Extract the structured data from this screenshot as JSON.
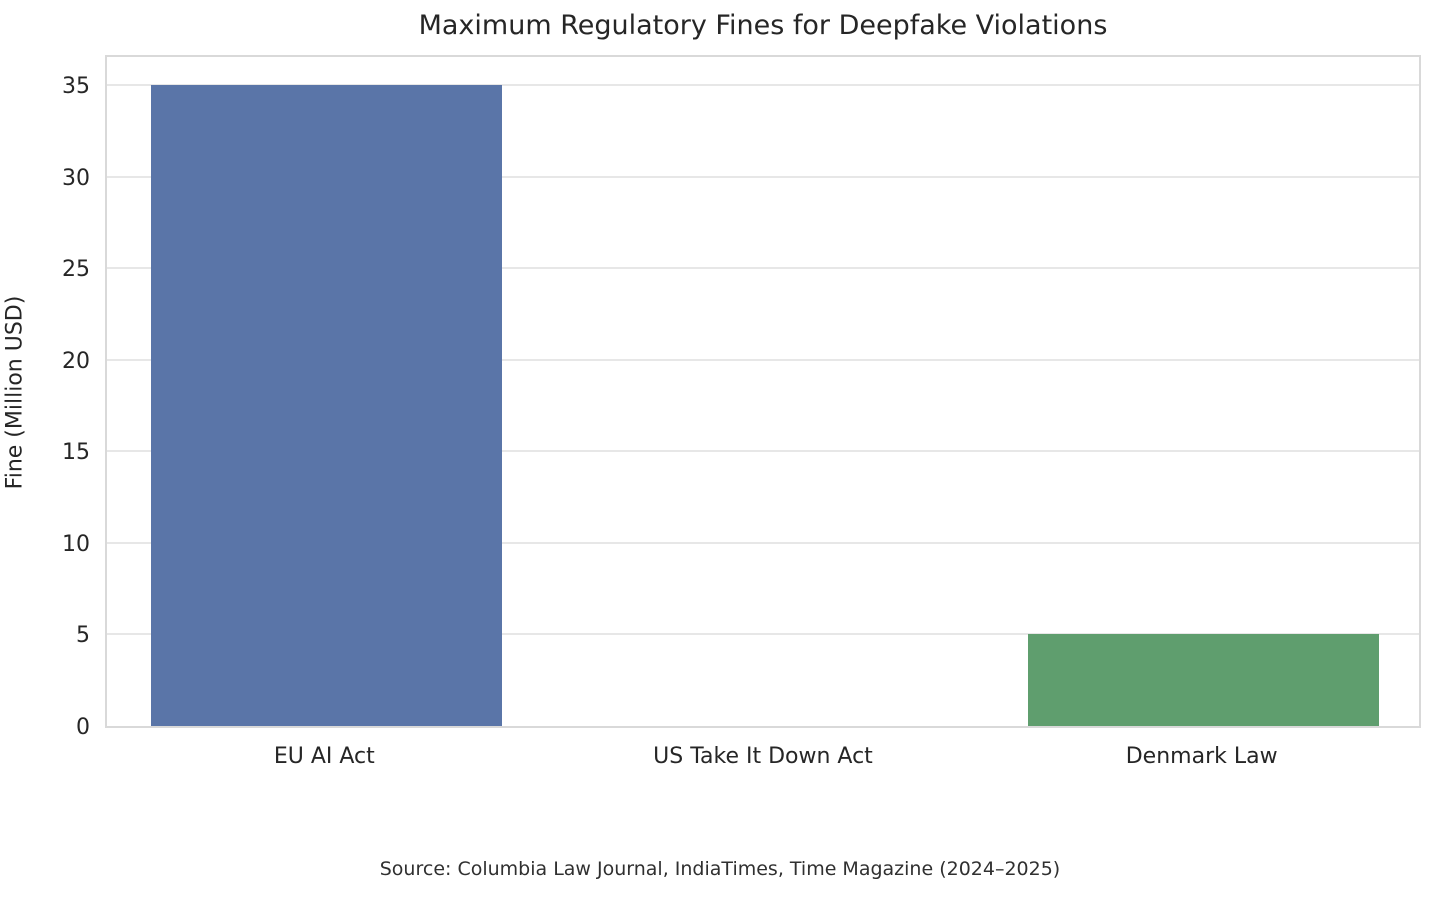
{
  "chart_data": {
    "type": "bar",
    "title": "Maximum Regulatory Fines for Deepfake Violations",
    "categories": [
      "EU AI Act",
      "US Take It Down Act",
      "Denmark Law"
    ],
    "values": [
      35,
      0,
      5
    ],
    "bar_colors": [
      "#5a75a8",
      null,
      "#5f9e6e"
    ],
    "xlabel": "",
    "ylabel": "Fine (Million USD)",
    "ylim": [
      0,
      36.75
    ],
    "yticks": [
      0,
      5,
      10,
      15,
      20,
      25,
      30,
      35
    ],
    "grid": "horizontal-only",
    "legend": "none",
    "source_note": "Source: Columbia Law Journal, IndiaTimes, Time Magazine (2024–2025)"
  },
  "colors": {
    "background": "#ffffff",
    "plot_border": "#d9d9d9",
    "gridline": "#e7e7e7",
    "text": "#262626",
    "bar_blue": "#5a75a8",
    "bar_green": "#5f9e6e"
  }
}
